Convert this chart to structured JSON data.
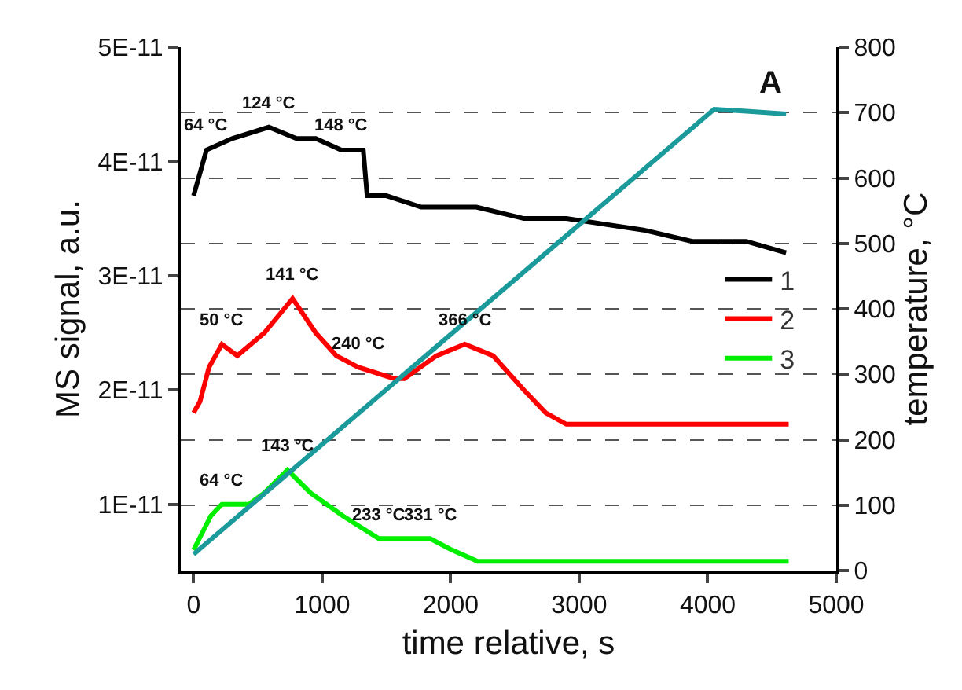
{
  "chart_data": {
    "type": "line",
    "xlabel": "time relative, s",
    "ylabel": "MS signal, a.u.",
    "y2label": "temperature, °C",
    "xlim": [
      -100,
      5000
    ],
    "xticks": [
      0,
      1000,
      2000,
      3000,
      4000,
      5000
    ],
    "ylim": [
      4.2e-12,
      5e-11
    ],
    "yticks": [
      {
        "value": 1e-11,
        "label": "1E-11"
      },
      {
        "value": 2e-11,
        "label": "2E-11"
      },
      {
        "value": 3e-11,
        "label": "3E-11"
      },
      {
        "value": 4e-11,
        "label": "4E-11"
      },
      {
        "value": 5e-11,
        "label": "5E-11"
      }
    ],
    "y2lim": [
      0,
      800
    ],
    "y2ticks": [
      0,
      100,
      200,
      300,
      400,
      500,
      600,
      700,
      800
    ],
    "grid": "y",
    "legend": "right",
    "line_style": "solid",
    "marker": "none",
    "series": [
      {
        "name": "1",
        "color": "#000000",
        "x": [
          0,
          100,
          300,
          585,
          800,
          950,
          1150,
          1320,
          1350,
          1500,
          1770,
          2200,
          2570,
          2900,
          3500,
          3880,
          4300,
          4610
        ],
        "values": [
          3.7e-11,
          4.1e-11,
          4.2e-11,
          4.3e-11,
          4.2e-11,
          4.2e-11,
          4.1e-11,
          4.1e-11,
          3.7e-11,
          3.7e-11,
          3.6e-11,
          3.6e-11,
          3.5e-11,
          3.5e-11,
          3.4e-11,
          3.3e-11,
          3.3e-11,
          3.2e-11
        ]
      },
      {
        "name": "2",
        "color": "#ff0000",
        "x": [
          0,
          50,
          120,
          220,
          340,
          550,
          770,
          950,
          1110,
          1280,
          1560,
          1640,
          1890,
          2110,
          2330,
          2570,
          2740,
          2900,
          3500,
          4000,
          4630
        ],
        "values": [
          1.8e-11,
          1.9e-11,
          2.2e-11,
          2.4e-11,
          2.3e-11,
          2.5e-11,
          2.8e-11,
          2.5e-11,
          2.3e-11,
          2.2e-11,
          2.1e-11,
          2.1e-11,
          2.3e-11,
          2.4e-11,
          2.3e-11,
          2e-11,
          1.8e-11,
          1.7e-11,
          1.7e-11,
          1.7e-11,
          1.7e-11
        ]
      },
      {
        "name": "3",
        "color": "#00ee00",
        "x": [
          0,
          135,
          220,
          430,
          550,
          730,
          910,
          1160,
          1440,
          1680,
          1840,
          2010,
          2210,
          2570,
          3500,
          4630
        ],
        "values": [
          6e-12,
          9e-12,
          1e-11,
          1e-11,
          1.1e-11,
          1.3e-11,
          1.1e-11,
          9e-12,
          7e-12,
          7e-12,
          7e-12,
          6e-12,
          5e-12,
          5e-12,
          5e-12,
          5e-12
        ]
      },
      {
        "color": "#1a9a9a",
        "axis": "y2",
        "x": [
          0,
          4050,
          4300,
          4610
        ],
        "values": [
          25,
          705,
          702,
          698
        ]
      }
    ],
    "annotations": [
      {
        "text": "64 °C",
        "x": 100,
        "y": 4.1e-11
      },
      {
        "text": "124 °C",
        "x": 585,
        "y": 4.3e-11
      },
      {
        "text": "148 °C",
        "x": 1150,
        "y": 4.1e-11
      },
      {
        "text": "50 °C",
        "x": 220,
        "y": 2.4e-11
      },
      {
        "text": "141 °C",
        "x": 770,
        "y": 2.8e-11
      },
      {
        "text": "240 °C",
        "x": 1280,
        "y": 2.2e-11
      },
      {
        "text": "366 °C",
        "x": 2110,
        "y": 2.4e-11
      },
      {
        "text": "64 °C",
        "x": 220,
        "y": 1e-11
      },
      {
        "text": "143 °C",
        "x": 730,
        "y": 1.3e-11
      },
      {
        "text": "233 °C",
        "x": 1440,
        "y": 7e-12
      },
      {
        "text": "331 °C",
        "x": 1840,
        "y": 7e-12
      },
      "A"
    ]
  }
}
